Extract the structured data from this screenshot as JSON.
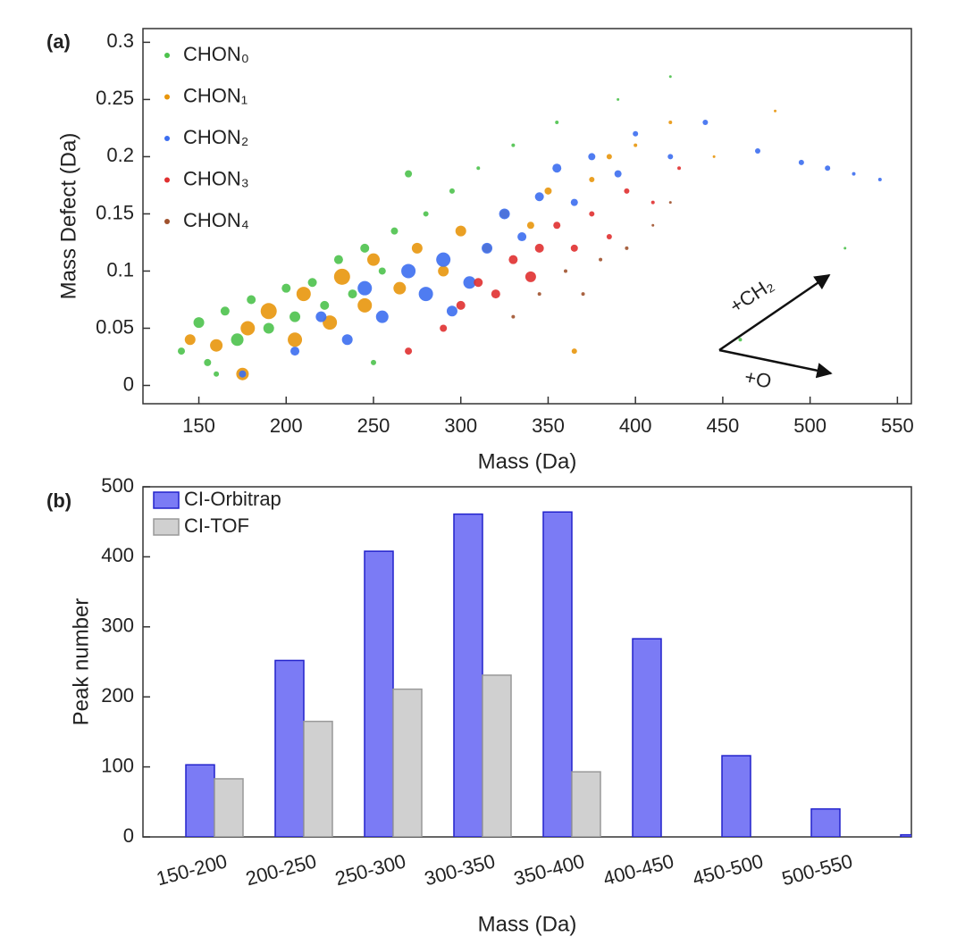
{
  "chart_data": [
    {
      "type": "scatter",
      "label": "(a)",
      "xlabel": "Mass (Da)",
      "ylabel": "Mass Defect (Da)",
      "xlim": [
        118,
        558
      ],
      "ylim": [
        -0.016,
        0.312
      ],
      "xticks": [
        150,
        200,
        250,
        300,
        350,
        400,
        450,
        500,
        550
      ],
      "yticks": [
        0,
        0.05,
        0.1,
        0.15,
        0.2,
        0.25,
        0.3
      ],
      "legend": "upper left",
      "annotations": [
        "+CH₂",
        "+O"
      ],
      "series": [
        {
          "name": "CHON₀",
          "color": "#4dc24d",
          "x": [
            140,
            150,
            155,
            165,
            172,
            180,
            190,
            200,
            205,
            215,
            222,
            230,
            238,
            245,
            255,
            262,
            270,
            280,
            295,
            310,
            330,
            355,
            390,
            420,
            460,
            520,
            160,
            250
          ],
          "values": [
            0.03,
            0.055,
            0.02,
            0.065,
            0.04,
            0.075,
            0.05,
            0.085,
            0.06,
            0.09,
            0.07,
            0.11,
            0.08,
            0.12,
            0.1,
            0.135,
            0.185,
            0.15,
            0.17,
            0.19,
            0.21,
            0.23,
            0.25,
            0.27,
            0.04,
            0.12,
            0.01,
            0.02
          ],
          "sizes": [
            4,
            6,
            4,
            5,
            7,
            5,
            6,
            5,
            6,
            5,
            5,
            5,
            5,
            5,
            4,
            4,
            4,
            3,
            3,
            2,
            2,
            2,
            1.5,
            1.5,
            2,
            1.5,
            3,
            3
          ]
        },
        {
          "name": "CHON₁",
          "color": "#e8960c",
          "x": [
            145,
            160,
            175,
            178,
            190,
            205,
            210,
            225,
            232,
            245,
            250,
            265,
            275,
            290,
            300,
            315,
            325,
            340,
            350,
            365,
            375,
            385,
            400,
            420,
            445,
            480
          ],
          "values": [
            0.04,
            0.035,
            0.01,
            0.05,
            0.065,
            0.04,
            0.08,
            0.055,
            0.095,
            0.07,
            0.11,
            0.085,
            0.12,
            0.1,
            0.135,
            0.12,
            0.15,
            0.14,
            0.17,
            0.03,
            0.18,
            0.2,
            0.21,
            0.23,
            0.2,
            0.24
          ],
          "sizes": [
            6,
            7,
            7,
            8,
            9,
            8,
            8,
            8,
            9,
            8,
            7,
            7,
            6,
            6,
            6,
            5,
            5,
            4,
            4,
            3,
            3,
            3,
            2,
            2,
            1.5,
            1.5
          ]
        },
        {
          "name": "CHON₂",
          "color": "#3c6ef0",
          "x": [
            175,
            205,
            220,
            235,
            245,
            255,
            270,
            280,
            290,
            295,
            305,
            315,
            325,
            335,
            345,
            355,
            365,
            375,
            390,
            400,
            420,
            440,
            470,
            495,
            510,
            525,
            540
          ],
          "values": [
            0.01,
            0.03,
            0.06,
            0.04,
            0.085,
            0.06,
            0.1,
            0.08,
            0.11,
            0.065,
            0.09,
            0.12,
            0.15,
            0.13,
            0.165,
            0.19,
            0.16,
            0.2,
            0.185,
            0.22,
            0.2,
            0.23,
            0.205,
            0.195,
            0.19,
            0.185,
            0.18
          ],
          "sizes": [
            4,
            5,
            6,
            6,
            8,
            7,
            8,
            8,
            8,
            6,
            7,
            6,
            6,
            5,
            5,
            5,
            4,
            4,
            4,
            3,
            3,
            3,
            3,
            3,
            3,
            2,
            2
          ]
        },
        {
          "name": "CHON₃",
          "color": "#e03030",
          "x": [
            270,
            290,
            300,
            310,
            320,
            330,
            340,
            345,
            355,
            365,
            375,
            385,
            395,
            410,
            425
          ],
          "values": [
            0.03,
            0.05,
            0.07,
            0.09,
            0.08,
            0.11,
            0.095,
            0.12,
            0.14,
            0.12,
            0.15,
            0.13,
            0.17,
            0.16,
            0.19
          ],
          "sizes": [
            4,
            4,
            5,
            5,
            5,
            5,
            6,
            5,
            4,
            4,
            3,
            3,
            3,
            2,
            2
          ]
        },
        {
          "name": "CHON₄",
          "color": "#a0522d",
          "x": [
            330,
            345,
            360,
            370,
            380,
            395,
            410,
            420
          ],
          "values": [
            0.06,
            0.08,
            0.1,
            0.08,
            0.11,
            0.12,
            0.14,
            0.16
          ],
          "sizes": [
            2,
            2,
            2,
            2,
            2,
            2,
            1.5,
            1.5
          ]
        }
      ]
    },
    {
      "type": "bar",
      "label": "(b)",
      "xlabel": "Mass (Da)",
      "ylabel": "Peak number",
      "categories": [
        "150-200",
        "200-250",
        "250-300",
        "300-350",
        "350-400",
        "400-450",
        "450-500",
        "500-550",
        null
      ],
      "ylim": [
        0,
        500
      ],
      "yticks": [
        0,
        100,
        200,
        300,
        400,
        500
      ],
      "legend": "upper left",
      "series": [
        {
          "name": "CI-Orbitrap",
          "color": "#7b7bf5",
          "edge": "#2222cc",
          "values": [
            103,
            252,
            408,
            461,
            464,
            283,
            116,
            40,
            3
          ]
        },
        {
          "name": "CI-TOF",
          "color": "#d0d0d0",
          "edge": "#999999",
          "values": [
            83,
            165,
            211,
            231,
            93,
            0,
            0,
            0,
            0
          ]
        }
      ]
    }
  ]
}
